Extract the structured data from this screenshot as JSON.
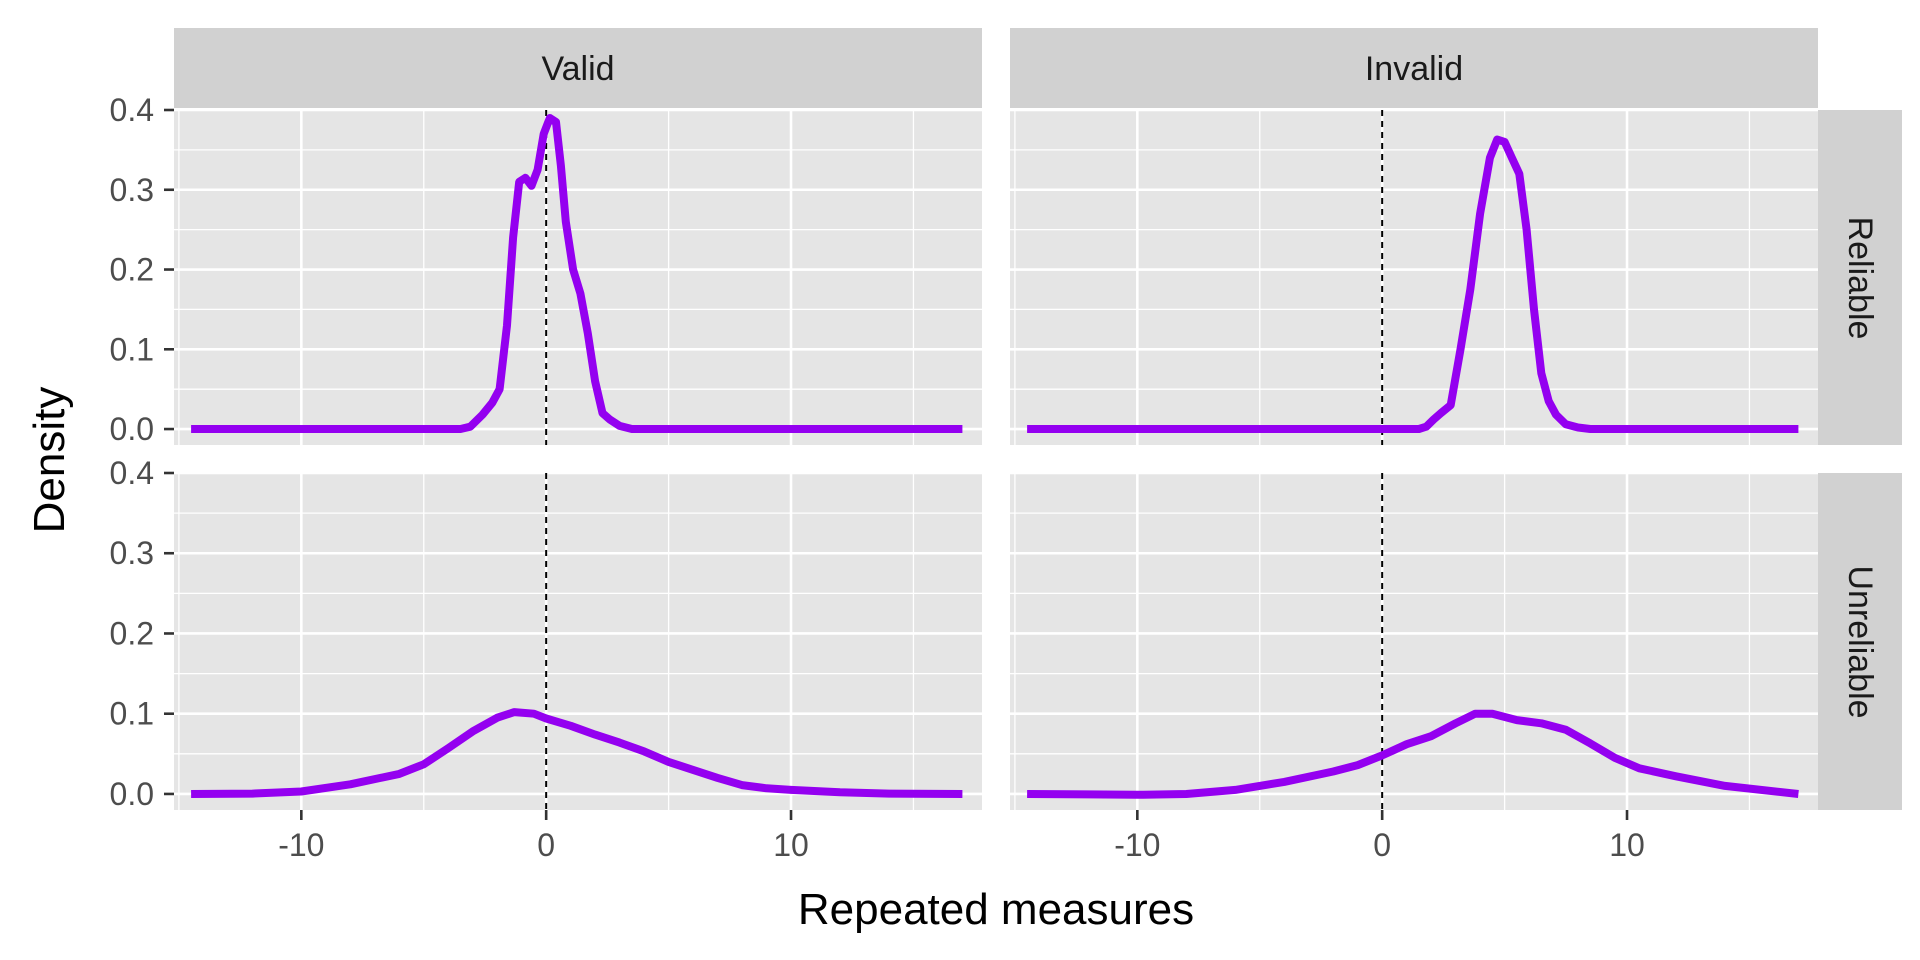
{
  "chart_data": {
    "type": "line",
    "xlabel": "Repeated measures",
    "ylabel": "Density",
    "xlim": [
      -15.2,
      17.8
    ],
    "ylim": [
      -0.02,
      0.4
    ],
    "x_ticks": [
      -10,
      0,
      10
    ],
    "x_tick_labels": [
      "-10",
      "0",
      "10"
    ],
    "y_ticks": [
      0.0,
      0.1,
      0.2,
      0.3,
      0.4
    ],
    "y_tick_labels": [
      "0.0",
      "0.1",
      "0.2",
      "0.3",
      "0.4"
    ],
    "grid": true,
    "reference_line_x": 0,
    "line_color": "#9400F0",
    "panel_background": "#E5E5E5",
    "strip_background": "#D1D1D1",
    "columns": [
      "Valid",
      "Invalid"
    ],
    "rows": [
      "Reliable",
      "Unreliable"
    ],
    "panels": [
      {
        "row": "Reliable",
        "col": "Valid",
        "x": [
          -14.5,
          -6,
          -3.5,
          -3.1,
          -2.6,
          -2.2,
          -1.9,
          -1.6,
          -1.35,
          -1.1,
          -0.85,
          -0.6,
          -0.35,
          -0.1,
          0.15,
          0.4,
          0.6,
          0.8,
          1.1,
          1.4,
          1.7,
          2.0,
          2.3,
          2.6,
          3.0,
          3.5,
          4.5,
          8,
          17
        ],
        "y": [
          0,
          0,
          0,
          0.003,
          0.018,
          0.033,
          0.05,
          0.13,
          0.24,
          0.31,
          0.315,
          0.305,
          0.325,
          0.37,
          0.39,
          0.385,
          0.33,
          0.26,
          0.2,
          0.17,
          0.12,
          0.06,
          0.02,
          0.012,
          0.004,
          0,
          0,
          0,
          0
        ]
      },
      {
        "row": "Reliable",
        "col": "Invalid",
        "x": [
          -14.5,
          0,
          1.5,
          1.8,
          2.1,
          2.4,
          2.8,
          3.2,
          3.6,
          4.0,
          4.4,
          4.7,
          5.0,
          5.3,
          5.6,
          5.9,
          6.2,
          6.5,
          6.8,
          7.1,
          7.5,
          8.0,
          8.5,
          9.5,
          17
        ],
        "y": [
          0,
          0,
          0,
          0.003,
          0.012,
          0.02,
          0.03,
          0.1,
          0.175,
          0.27,
          0.34,
          0.363,
          0.36,
          0.34,
          0.32,
          0.25,
          0.15,
          0.07,
          0.035,
          0.018,
          0.006,
          0.002,
          0,
          0,
          0
        ]
      },
      {
        "row": "Unreliable",
        "col": "Valid",
        "x": [
          -14.5,
          -12,
          -10,
          -8,
          -6,
          -5,
          -4,
          -3,
          -2,
          -1.3,
          -0.5,
          0,
          1,
          2,
          3,
          4,
          5,
          6,
          7,
          8,
          9,
          10,
          12,
          14,
          17
        ],
        "y": [
          0,
          0.0005,
          0.003,
          0.012,
          0.025,
          0.037,
          0.057,
          0.078,
          0.095,
          0.102,
          0.1,
          0.094,
          0.085,
          0.074,
          0.064,
          0.053,
          0.04,
          0.03,
          0.02,
          0.011,
          0.007,
          0.005,
          0.002,
          0.0005,
          0
        ]
      },
      {
        "row": "Unreliable",
        "col": "Invalid",
        "x": [
          -14.5,
          -12,
          -10,
          -8,
          -6,
          -4,
          -2,
          -1,
          0,
          1,
          2,
          3,
          3.8,
          4.5,
          5.5,
          6.5,
          7.5,
          8.5,
          9.5,
          10.5,
          12,
          14,
          17
        ],
        "y": [
          0,
          -0.0005,
          -0.001,
          0,
          0.005,
          0.015,
          0.028,
          0.036,
          0.048,
          0.062,
          0.072,
          0.088,
          0.1,
          0.1,
          0.092,
          0.088,
          0.08,
          0.063,
          0.045,
          0.032,
          0.022,
          0.01,
          0
        ]
      }
    ]
  }
}
